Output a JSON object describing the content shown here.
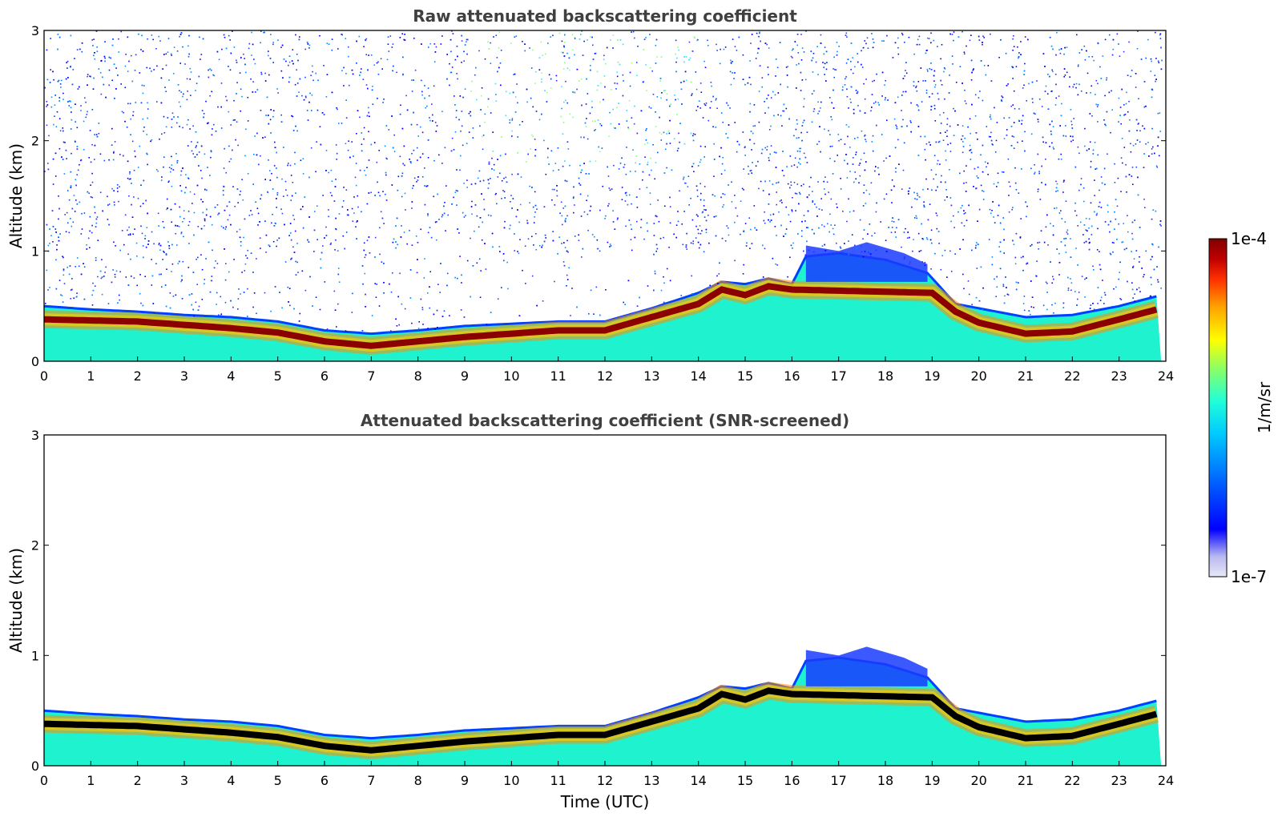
{
  "chart_data": [
    {
      "type": "heatmap",
      "title": "Raw attenuated backscattering coefficient",
      "xlabel": "",
      "ylabel": "Altitude (km)",
      "xlim": [
        0,
        24
      ],
      "ylim": [
        0,
        3
      ],
      "xticks": [
        "0",
        "1",
        "2",
        "3",
        "4",
        "5",
        "6",
        "7",
        "8",
        "9",
        "10",
        "11",
        "12",
        "13",
        "14",
        "15",
        "16",
        "17",
        "18",
        "19",
        "20",
        "21",
        "22",
        "23",
        "24"
      ],
      "yticks": [
        "0",
        "1",
        "2",
        "3"
      ],
      "layer_top_km": {
        "x": [
          0,
          1,
          2,
          3,
          4,
          5,
          6,
          7,
          8,
          9,
          10,
          11,
          12,
          13,
          14,
          14.5,
          15,
          15.5,
          16,
          16.3,
          17,
          18,
          18.9,
          19.5,
          20,
          21,
          22,
          23,
          23.9
        ],
        "y": [
          0.5,
          0.47,
          0.45,
          0.42,
          0.4,
          0.36,
          0.28,
          0.25,
          0.28,
          0.32,
          0.34,
          0.36,
          0.36,
          0.48,
          0.62,
          0.72,
          0.7,
          0.75,
          0.7,
          0.95,
          0.98,
          0.92,
          0.8,
          0.52,
          0.48,
          0.4,
          0.42,
          0.5,
          0.6
        ]
      },
      "aerosol_band_center_km": {
        "x": [
          0,
          1,
          2,
          3,
          4,
          5,
          6,
          7,
          8,
          9,
          10,
          11,
          12,
          13,
          14,
          14.5,
          15,
          15.5,
          16,
          19,
          19.5,
          20,
          21,
          22,
          23,
          23.9
        ],
        "y": [
          0.38,
          0.37,
          0.36,
          0.33,
          0.3,
          0.26,
          0.18,
          0.14,
          0.18,
          0.22,
          0.25,
          0.28,
          0.28,
          0.4,
          0.52,
          0.65,
          0.6,
          0.68,
          0.65,
          0.62,
          0.45,
          0.35,
          0.25,
          0.27,
          0.38,
          0.48
        ]
      },
      "noise_above_layer": true
    },
    {
      "type": "heatmap",
      "title": "Attenuated backscattering coefficient (SNR-screened)",
      "xlabel": "Time (UTC)",
      "ylabel": "Altitude (km)",
      "xlim": [
        0,
        24
      ],
      "ylim": [
        0,
        3
      ],
      "xticks": [
        "0",
        "1",
        "2",
        "3",
        "4",
        "5",
        "6",
        "7",
        "8",
        "9",
        "10",
        "11",
        "12",
        "13",
        "14",
        "15",
        "16",
        "17",
        "18",
        "19",
        "20",
        "21",
        "22",
        "23",
        "24"
      ],
      "yticks": [
        "0",
        "1",
        "2",
        "3"
      ],
      "noise_above_layer": false
    }
  ],
  "colorbar": {
    "label": "1/m/sr",
    "max_label": "1e-4",
    "min_label": "1e-7",
    "scale": "log",
    "colors": [
      "#e8e8f8",
      "#b8b8f0",
      "#0000ff",
      "#0070ff",
      "#00c8ff",
      "#20ffd8",
      "#90ff60",
      "#ffff00",
      "#ffa000",
      "#ff3000",
      "#c00000",
      "#800000"
    ]
  }
}
